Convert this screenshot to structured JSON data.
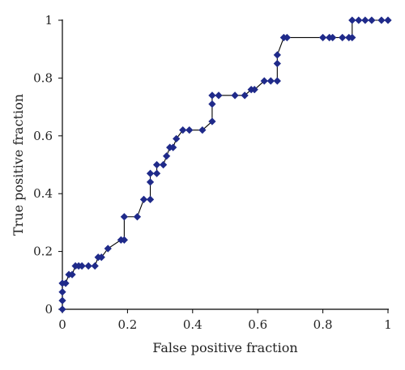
{
  "chart_data": {
    "type": "line",
    "title": "",
    "xlabel": "False positive fraction",
    "ylabel": "True positive fraction",
    "xlim": [
      0,
      1
    ],
    "ylim": [
      0,
      1
    ],
    "xticks": [
      "0",
      "0.2",
      "0.4",
      "0.6",
      "0.8",
      "1"
    ],
    "yticks": [
      "0",
      "0.2",
      "0.4",
      "0.6",
      "0.8",
      "1"
    ],
    "grid": false,
    "legend": "none",
    "series": [
      {
        "color": "#1f2a8a",
        "marker": "diamond",
        "x": [
          0,
          0,
          0,
          0,
          0.01,
          0.02,
          0.03,
          0.04,
          0.05,
          0.06,
          0.08,
          0.1,
          0.11,
          0.12,
          0.14,
          0.18,
          0.19,
          0.19,
          0.23,
          0.25,
          0.27,
          0.27,
          0.27,
          0.29,
          0.29,
          0.31,
          0.32,
          0.33,
          0.34,
          0.35,
          0.37,
          0.39,
          0.43,
          0.46,
          0.46,
          0.46,
          0.48,
          0.53,
          0.56,
          0.58,
          0.59,
          0.62,
          0.64,
          0.66,
          0.66,
          0.66,
          0.68,
          0.69,
          0.8,
          0.82,
          0.83,
          0.86,
          0.88,
          0.89,
          0.89,
          0.91,
          0.93,
          0.95,
          0.98,
          1.0
        ],
        "y": [
          0,
          0.03,
          0.06,
          0.09,
          0.09,
          0.12,
          0.12,
          0.15,
          0.15,
          0.15,
          0.15,
          0.15,
          0.18,
          0.18,
          0.21,
          0.24,
          0.24,
          0.32,
          0.32,
          0.38,
          0.38,
          0.44,
          0.47,
          0.47,
          0.5,
          0.5,
          0.53,
          0.56,
          0.56,
          0.59,
          0.62,
          0.62,
          0.62,
          0.65,
          0.71,
          0.74,
          0.74,
          0.74,
          0.74,
          0.76,
          0.76,
          0.79,
          0.79,
          0.79,
          0.85,
          0.88,
          0.94,
          0.94,
          0.94,
          0.94,
          0.94,
          0.94,
          0.94,
          0.94,
          1.0,
          1.0,
          1.0,
          1.0,
          1.0,
          1.0
        ]
      }
    ]
  }
}
